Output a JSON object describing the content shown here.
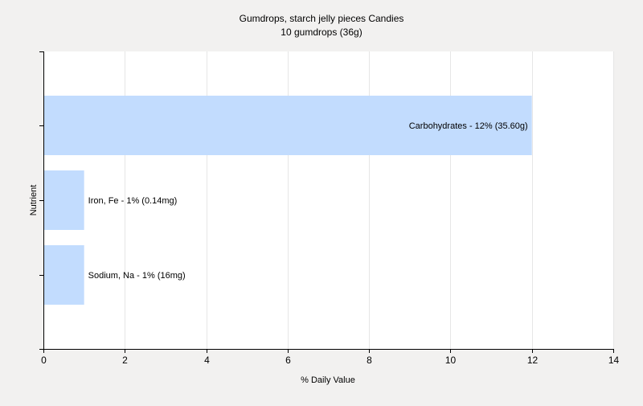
{
  "chart_data": {
    "type": "bar",
    "orientation": "horizontal",
    "title": "Gumdrops, starch jelly pieces Candies",
    "subtitle": "10 gumdrops (36g)",
    "xlabel": "% Daily Value",
    "ylabel": "Nutrient",
    "xlim": [
      0,
      14
    ],
    "xticks": [
      0,
      2,
      4,
      6,
      8,
      10,
      12,
      14
    ],
    "grid": true,
    "legend": "none",
    "bar_color": "#c2dcfe",
    "bars": [
      {
        "category": "Carbohydrates",
        "value": 12,
        "label": "Carbohydrates - 12% (35.60g)"
      },
      {
        "category": "Iron, Fe",
        "value": 1,
        "label": "Iron, Fe - 1% (0.14mg)"
      },
      {
        "category": "Sodium, Na",
        "value": 1,
        "label": "Sodium, Na - 1% (16mg)"
      }
    ]
  },
  "colors": {
    "page_background": "#f2f1f0",
    "plot_background": "#ffffff",
    "grid": "#e6e6e6",
    "axis": "#000000"
  }
}
